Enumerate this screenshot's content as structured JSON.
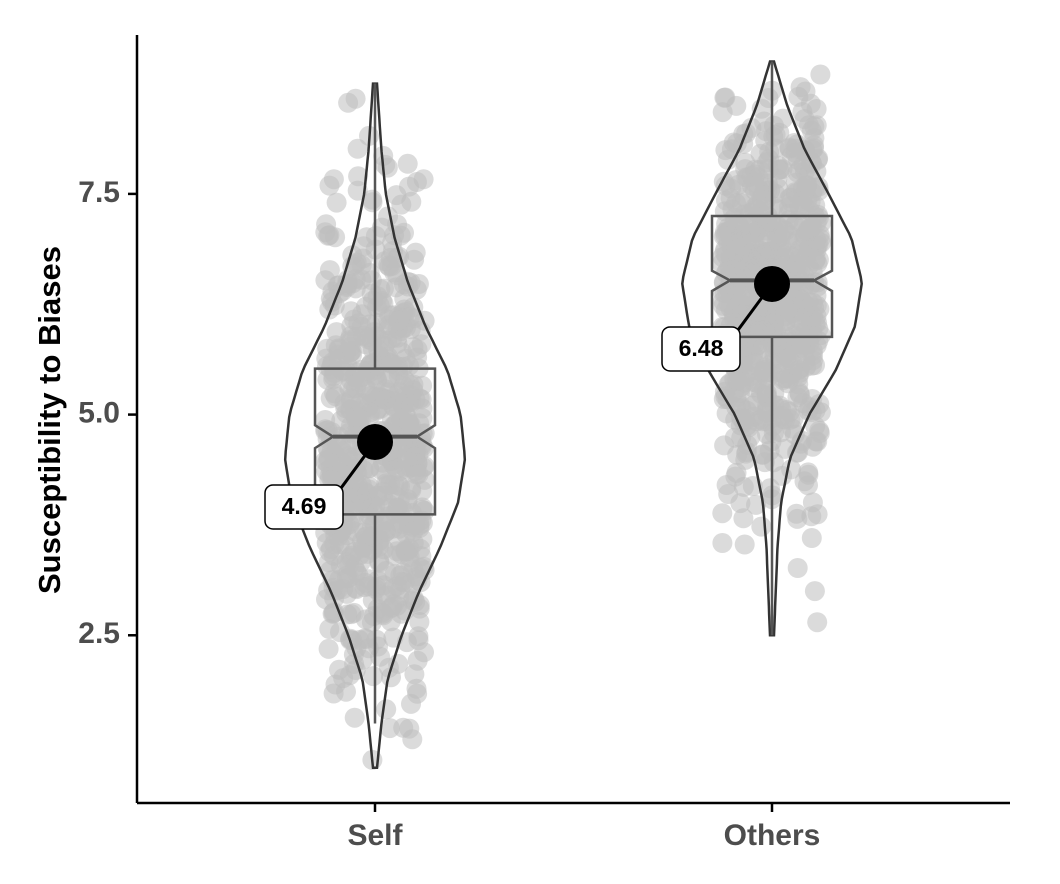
{
  "chart_data": {
    "type": "violin",
    "title": "",
    "xlabel": "",
    "ylabel": "Susceptibility to Biases",
    "categories": [
      "Self",
      "Others"
    ],
    "ylim": [
      0.6,
      9.3
    ],
    "y_ticks": [
      {
        "value": 2.5,
        "label": "2.5"
      },
      {
        "value": 5.0,
        "label": "5.0"
      },
      {
        "value": 7.5,
        "label": "7.5"
      }
    ],
    "grid": false,
    "legend": "none",
    "groups": [
      {
        "name": "Self",
        "mean": 4.69,
        "mean_label": "4.69",
        "box": {
          "q1": 3.87,
          "median": 4.75,
          "q3": 5.52,
          "whisker_low": 1.5,
          "whisker_high": 8.75,
          "notch": [
            4.62,
            4.88
          ]
        },
        "violin_range": [
          1.0,
          8.75
        ],
        "violin_density": [
          [
            1.0,
            0.0
          ],
          [
            1.5,
            0.05
          ],
          [
            2.0,
            0.12
          ],
          [
            2.5,
            0.28
          ],
          [
            3.0,
            0.48
          ],
          [
            3.5,
            0.72
          ],
          [
            4.0,
            0.92
          ],
          [
            4.5,
            1.0
          ],
          [
            5.0,
            0.95
          ],
          [
            5.5,
            0.8
          ],
          [
            6.0,
            0.55
          ],
          [
            6.5,
            0.35
          ],
          [
            7.0,
            0.2
          ],
          [
            7.5,
            0.1
          ],
          [
            8.0,
            0.05
          ],
          [
            8.75,
            0.0
          ]
        ]
      },
      {
        "name": "Others",
        "mean": 6.48,
        "mean_label": "6.48",
        "box": {
          "q1": 5.88,
          "median": 6.52,
          "q3": 7.25,
          "whisker_low": 2.5,
          "whisker_high": 9.0,
          "notch": [
            6.4,
            6.63
          ]
        },
        "violin_range": [
          2.5,
          9.0
        ],
        "violin_density": [
          [
            2.5,
            0.0
          ],
          [
            3.0,
            0.02
          ],
          [
            3.5,
            0.04
          ],
          [
            4.0,
            0.08
          ],
          [
            4.5,
            0.18
          ],
          [
            5.0,
            0.4
          ],
          [
            5.5,
            0.7
          ],
          [
            6.0,
            0.92
          ],
          [
            6.5,
            1.0
          ],
          [
            7.0,
            0.88
          ],
          [
            7.5,
            0.62
          ],
          [
            8.0,
            0.35
          ],
          [
            8.5,
            0.15
          ],
          [
            9.0,
            0.0
          ]
        ]
      }
    ],
    "colors": {
      "points": "#bdbdbd",
      "box": "#555555",
      "violin": "#333333",
      "mean": "#000000"
    }
  }
}
